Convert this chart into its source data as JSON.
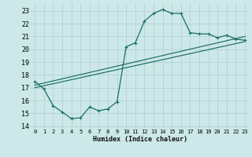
{
  "xlabel": "Humidex (Indice chaleur)",
  "bg_color": "#cce8e8",
  "grid_color": "#b8d4d4",
  "line_color": "#1a6e62",
  "xlim": [
    -0.5,
    23.5
  ],
  "ylim": [
    13.8,
    23.6
  ],
  "yticks": [
    14,
    15,
    16,
    17,
    18,
    19,
    20,
    21,
    22,
    23
  ],
  "xticks": [
    0,
    1,
    2,
    3,
    4,
    5,
    6,
    7,
    8,
    9,
    10,
    11,
    12,
    13,
    14,
    15,
    16,
    17,
    18,
    19,
    20,
    21,
    22,
    23
  ],
  "curve1_x": [
    0,
    1,
    2,
    3,
    4,
    5,
    6,
    7,
    8,
    9,
    10,
    11,
    12,
    13,
    14,
    15,
    16,
    17,
    18,
    19,
    20,
    21,
    22,
    23
  ],
  "curve1_y": [
    17.5,
    16.9,
    15.6,
    15.1,
    14.6,
    14.65,
    15.5,
    15.2,
    15.35,
    15.9,
    20.2,
    20.5,
    22.2,
    22.8,
    23.1,
    22.8,
    22.8,
    21.3,
    21.2,
    21.2,
    20.9,
    21.1,
    20.8,
    20.7
  ],
  "line1_x0": 0,
  "line1_y0": 17.0,
  "line1_x1": 23,
  "line1_y1": 20.6,
  "line2_x0": 0,
  "line2_y0": 17.2,
  "line2_x1": 23,
  "line2_y1": 21.0
}
